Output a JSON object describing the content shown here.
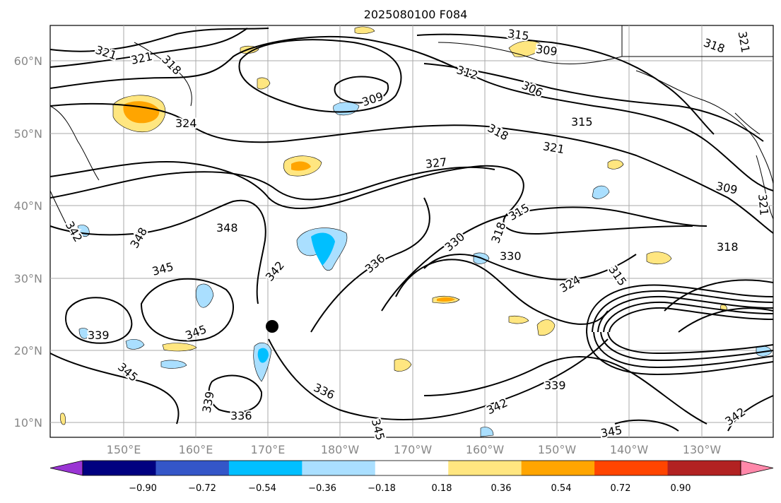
{
  "title": "2025080100 F084",
  "lat_labels": [
    "60°N",
    "50°N",
    "40°N",
    "30°N",
    "20°N",
    "10°N"
  ],
  "lon_labels": [
    "150°E",
    "160°E",
    "170°E",
    "180°W",
    "170°W",
    "160°W",
    "150°W",
    "140°W",
    "130°W"
  ],
  "colorbar": {
    "labels": [
      "−0.90",
      "−0.72",
      "−0.54",
      "−0.36",
      "−0.18",
      "0.18",
      "0.36",
      "0.54",
      "0.72",
      "0.90"
    ],
    "colors": [
      "#9a35d4",
      "#000080",
      "#3456c8",
      "#00bfff",
      "#aadfff",
      "#ffffff",
      "#ffe680",
      "#ffa500",
      "#ff4500",
      "#b22222",
      "#ff88aa"
    ]
  },
  "contour_labels": [
    "321",
    "321",
    "318",
    "324",
    "309",
    "315",
    "309",
    "312",
    "306",
    "315",
    "318",
    "321",
    "327",
    "309",
    "318",
    "315",
    "330",
    "348",
    "345",
    "348",
    "342",
    "336",
    "330",
    "324",
    "315",
    "318",
    "339",
    "345",
    "345",
    "339",
    "336",
    "336",
    "345",
    "342",
    "339",
    "342",
    "345",
    "342",
    "321",
    "318",
    "321"
  ],
  "colors": {
    "warm_fill": "#ffe680",
    "warm_strong": "#ffa500",
    "cool_fill": "#aadfff",
    "cool_strong": "#00bfff",
    "marker": "#000000"
  }
}
